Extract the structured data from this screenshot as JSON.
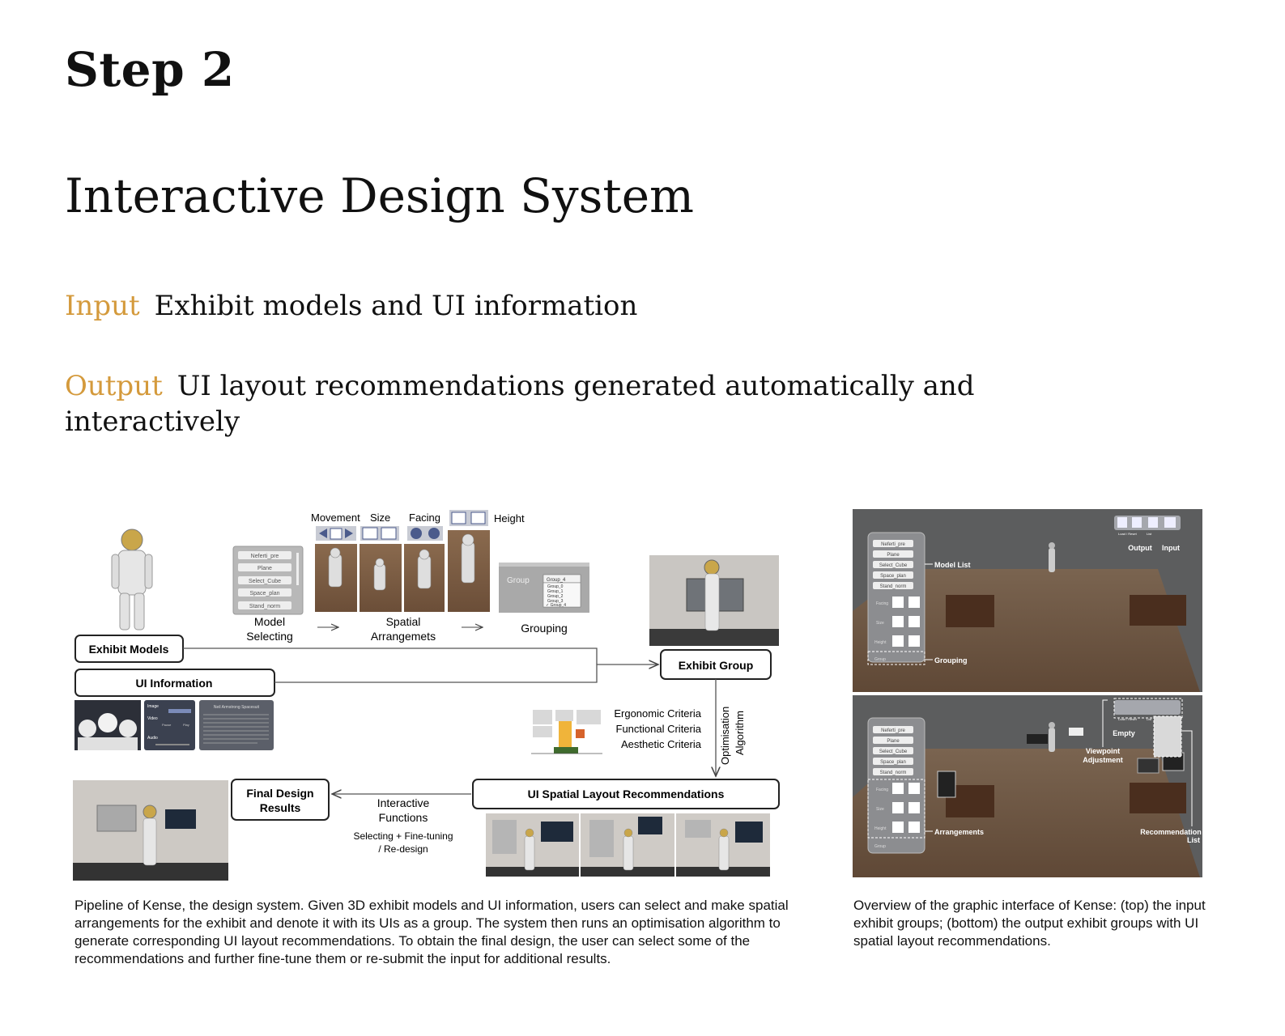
{
  "heading": {
    "step": "Step 2",
    "title": "Interactive Design System"
  },
  "input": {
    "label": "Input",
    "text": "Exhibit models and UI information"
  },
  "output": {
    "label": "Output",
    "text": "UI layout recommendations generated automatically and interactively"
  },
  "accent_color": "#d49a3c",
  "pipeline": {
    "exhibit_models": "Exhibit Models",
    "ui_information": "UI Information",
    "model_selecting_1": "Model",
    "model_selecting_2": "Selecting",
    "spatial_1": "Spatial",
    "spatial_2": "Arrangemets",
    "grouping": "Grouping",
    "movement": "Movement",
    "size": "Size",
    "facing": "Facing",
    "height": "Height",
    "model_list": [
      "Neferti_pre",
      "Plane",
      "Select_Cube",
      "Space_plan",
      "Stand_norm"
    ],
    "group_label": "Group",
    "group_dropdown": "Group_4",
    "group_options": [
      "Group_0",
      "Group_1",
      "Group_2",
      "Group_3",
      "✓ Group_4"
    ],
    "exhibit_group": "Exhibit Group",
    "criteria": [
      "Ergonomic Criteria",
      "Functional Criteria",
      "Aesthetic Criteria"
    ],
    "optimisation_1": "Optimisation",
    "optimisation_2": "Algorithm",
    "recommendations": "UI Spatial Layout Recommendations",
    "final_1": "Final Design",
    "final_2": "Results",
    "interactive_1": "Interactive",
    "interactive_2": "Functions",
    "interactive_3": "Selecting + Fine-tuning",
    "interactive_4": "/ Re-design",
    "ui_panel": {
      "image": "Image",
      "video": "Video",
      "audio": "Audio",
      "pause": "Pause",
      "play": "Play",
      "panel_title": "Neil Armstrong Spacesuit"
    }
  },
  "overview": {
    "model_list": "Model List",
    "grouping": "Grouping",
    "output": "Output",
    "input": "Input",
    "load_reset": "Load / Reset",
    "list": "List",
    "empty": "Empty",
    "viewpoint_1": "Viewpoint",
    "viewpoint_2": "Adjustment",
    "arrangements": "Arrangements",
    "recommendation_1": "Recommendation",
    "recommendation_2": "List",
    "facing": "Facing",
    "size": "Size",
    "height": "Height",
    "group": "Group"
  },
  "captions": {
    "left": "Pipeline of Kense, the design system. Given 3D exhibit models and UI information, users can select and make spatial arrangements for the exhibit and denote it with its UIs as a group. The system then runs an optimisation algorithm to generate corresponding UI layout recommendations. To obtain the final design, the user can select some of the recommendations and further fine-tune them or re-submit the input for additional results.",
    "right": "Overview of the graphic interface of Kense: (top) the input exhibit groups; (bottom) the output exhibit groups with UI spatial layout recommendations."
  }
}
